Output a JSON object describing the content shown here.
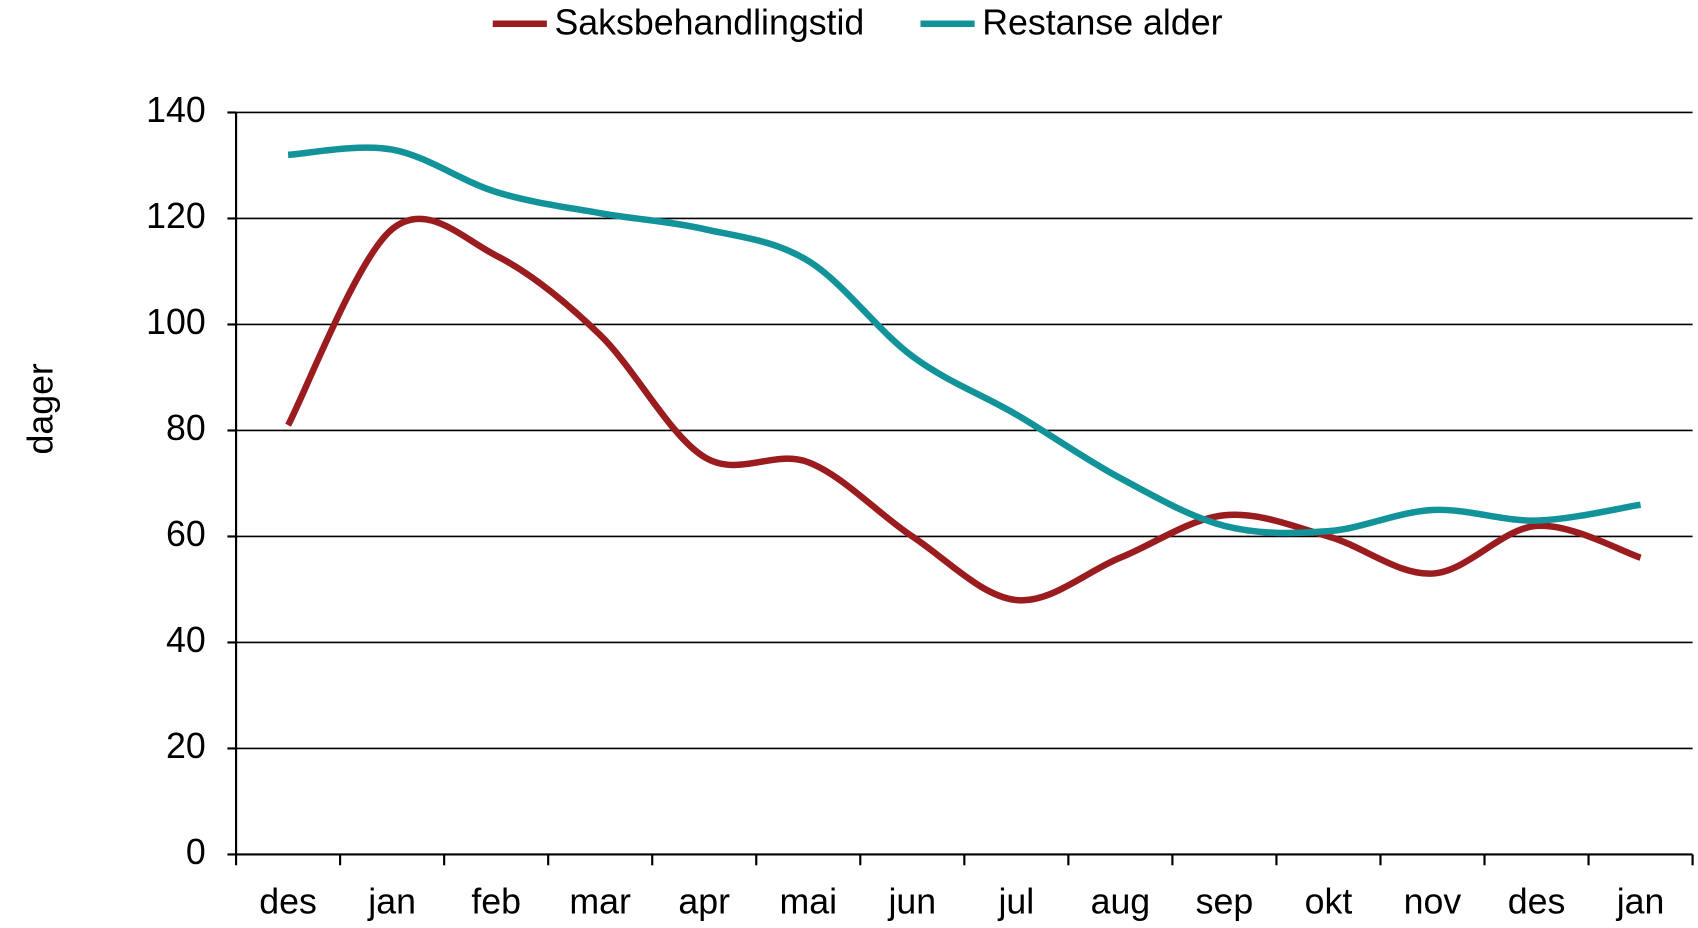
{
  "chart_data": {
    "type": "line",
    "y_label": "dager",
    "categories": [
      "des",
      "jan",
      "feb",
      "mar",
      "apr",
      "mai",
      "jun",
      "jul",
      "aug",
      "sep",
      "okt",
      "nov",
      "des",
      "jan"
    ],
    "series": [
      {
        "name": "Saksbehandlingstid",
        "color": "#9b1c1f",
        "values": [
          81,
          118,
          113,
          98,
          75,
          74,
          60,
          48,
          56,
          64,
          60,
          53,
          62,
          56
        ]
      },
      {
        "name": "Restanse alder",
        "color": "#12939a",
        "values": [
          132,
          133,
          125,
          121,
          118,
          112,
          94,
          83,
          71,
          62,
          61,
          65,
          63,
          66
        ]
      }
    ],
    "ylim": [
      0,
      140
    ],
    "yticks": [
      0,
      20,
      40,
      60,
      80,
      100,
      120,
      140
    ],
    "grid": true,
    "smooth": true,
    "legend": "top"
  }
}
